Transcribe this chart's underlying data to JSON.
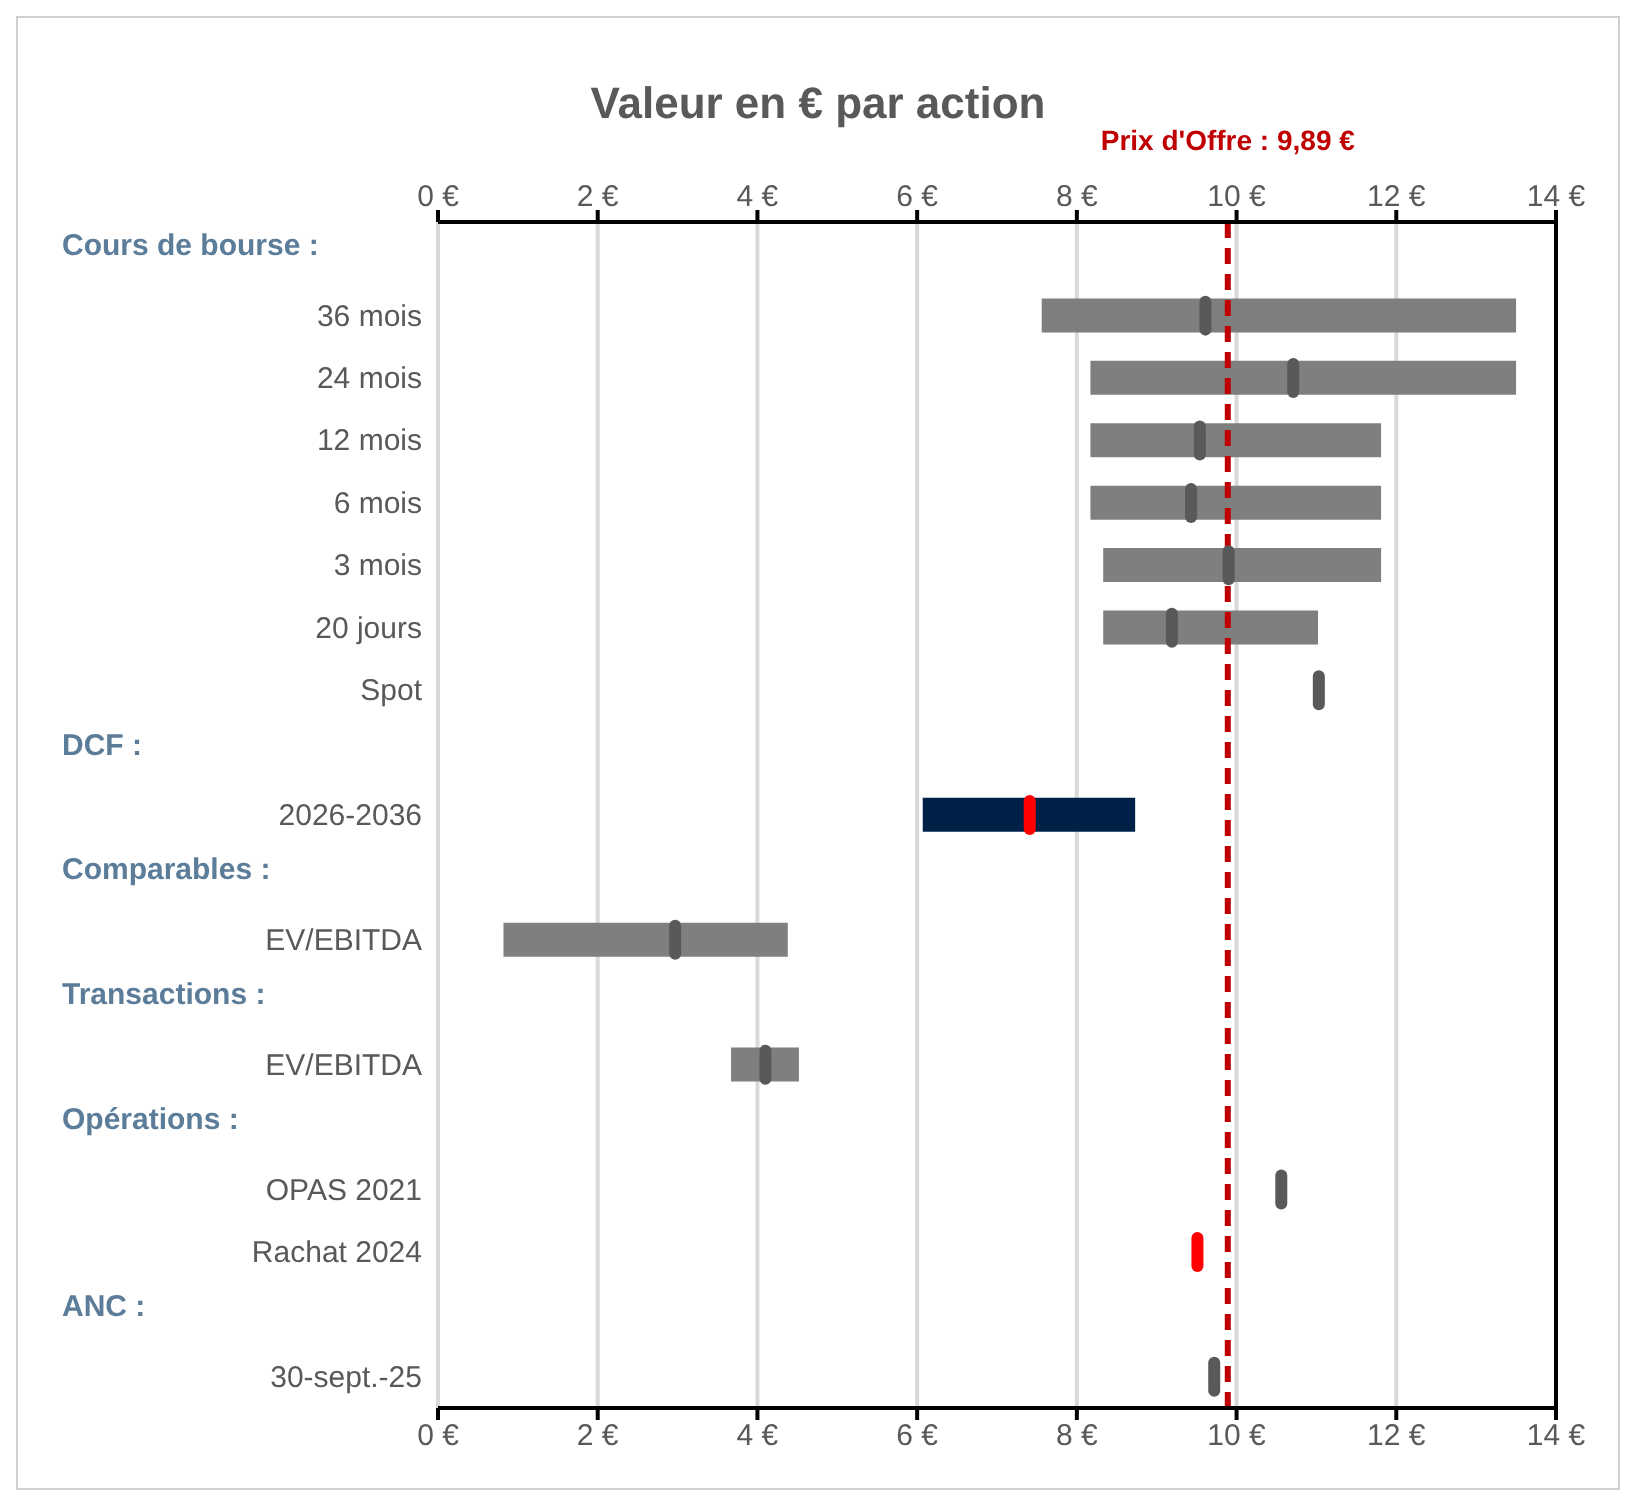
{
  "chart_data": {
    "type": "bar",
    "orientation": "horizontal",
    "title": "Valeur en € par action",
    "categories": [
      null,
      "36 mois",
      "24 mois",
      "12 mois",
      "6 mois",
      "3 mois",
      "20 jours",
      "Spot",
      null,
      "2026-2036",
      null,
      "EV/EBITDA",
      null,
      "EV/EBITDA",
      null,
      "OPAS 2021",
      "Rachat 2024",
      null,
      "30-sept.-25"
    ],
    "annotations": [
      "Cours de bourse :",
      "DCF :",
      "Comparables :",
      "Transactions :",
      "Opérations :",
      "ANC :"
    ],
    "series": [
      {
        "type": "bar",
        "base": [
          null,
          7.56,
          8.17,
          8.17,
          8.17,
          8.33,
          8.33,
          null,
          null,
          6.07,
          null,
          0.82,
          null,
          3.67,
          null,
          null,
          null,
          null,
          null
        ],
        "colors": [
          null,
          "#7f7f7f",
          "#7f7f7f",
          "#7f7f7f",
          "#7f7f7f",
          "#7f7f7f",
          "#7f7f7f",
          null,
          null,
          "#002147",
          null,
          "#7f7f7f",
          null,
          "#7f7f7f",
          null,
          null,
          null,
          null,
          null
        ],
        "values": [
          null,
          5.94,
          5.33,
          3.64,
          3.64,
          3.48,
          2.69,
          null,
          null,
          2.66,
          null,
          3.56,
          null,
          0.85,
          null,
          null,
          null,
          null,
          null
        ]
      },
      {
        "type": "scatter",
        "colors": [
          null,
          "#595959",
          "#595959",
          "#595959",
          "#595959",
          "#595959",
          "#595959",
          "#595959",
          null,
          "#ff0000",
          null,
          "#595959",
          null,
          "#595959",
          null,
          "#595959",
          "#ff0000",
          null,
          "#595959"
        ],
        "values": [
          null,
          9.61,
          10.71,
          9.54,
          9.43,
          9.9,
          9.19,
          11.03,
          null,
          7.41,
          null,
          2.97,
          null,
          4.1,
          null,
          10.56,
          9.51,
          null,
          9.72
        ]
      }
    ],
    "xlim": [
      0,
      14
    ],
    "xticks": [
      {
        "value": 0,
        "label": "0 €"
      },
      {
        "value": 2,
        "label": "2 €"
      },
      {
        "value": 4,
        "label": "4 €"
      },
      {
        "value": 6,
        "label": "6 €"
      },
      {
        "value": 8,
        "label": "8 €"
      },
      {
        "value": 10,
        "label": "10 €"
      },
      {
        "value": 12,
        "label": "12 €"
      },
      {
        "value": 14,
        "label": "14 €"
      }
    ],
    "x2lim": [
      0,
      14
    ],
    "x2ticks": [
      {
        "value": 0,
        "label": "0 €"
      },
      {
        "value": 2,
        "label": "2 €"
      },
      {
        "value": 4,
        "label": "4 €"
      },
      {
        "value": 6,
        "label": "6 €"
      },
      {
        "value": 8,
        "label": "8 €"
      },
      {
        "value": 10,
        "label": "10 €"
      },
      {
        "value": 12,
        "label": "12 €"
      },
      {
        "value": 14,
        "label": "14 €"
      }
    ],
    "grid": "x",
    "ref_lines": [
      {
        "axis": "x",
        "value": 9.89,
        "label": "Prix d'Offre : 9,89 €",
        "color": "#c00000",
        "line_style": "dashed"
      }
    ]
  }
}
